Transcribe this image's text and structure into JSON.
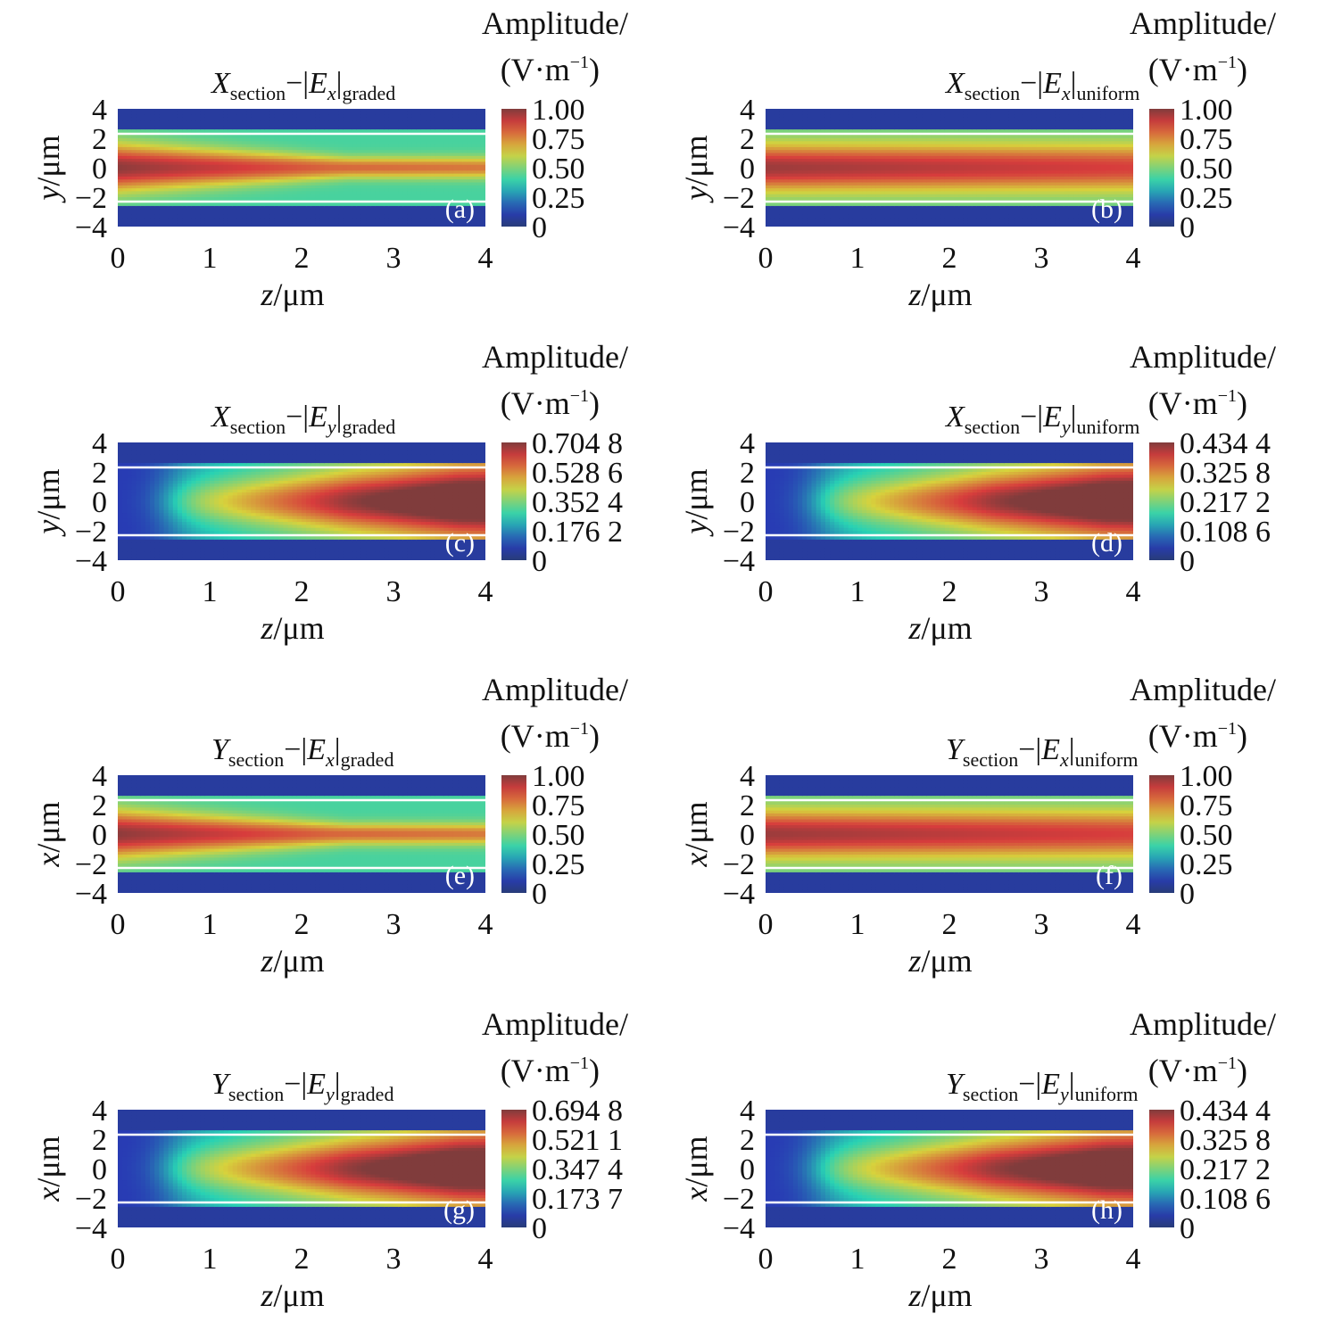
{
  "figure": {
    "colors": {
      "low": "#2a4ea8",
      "mid": "#5fbf3d",
      "high": "#d3251c",
      "guide_line": "#ffffff"
    },
    "colormap_name": "jet"
  },
  "chart_data": [
    {
      "type": "heatmap",
      "panel": "(a)",
      "title": {
        "var": "X",
        "sub1": "section",
        "field": "E",
        "fsub": "x",
        "sub2": "graded"
      },
      "xlabel": {
        "var": "z",
        "unit": "/μm"
      },
      "ylabel": {
        "var": "y",
        "unit": "/μm"
      },
      "xticks": [
        "0",
        "1",
        "2",
        "3",
        "4"
      ],
      "yticks": [
        "4",
        "2",
        "0",
        "−2",
        "−4"
      ],
      "xlim": [
        0,
        4
      ],
      "ylim": [
        -4,
        4
      ],
      "core_bounds": [
        -2.3,
        2.3
      ],
      "colorbar": {
        "label": [
          "Amplitude/",
          "(V·m",
          "−1",
          ")"
        ],
        "ticks": [
          "1.00",
          "0.75",
          "0.50",
          "0.25",
          "0"
        ],
        "max": 1.0
      },
      "profile": "decay"
    },
    {
      "type": "heatmap",
      "panel": "(b)",
      "title": {
        "var": "X",
        "sub1": "section",
        "field": "E",
        "fsub": "x",
        "sub2": "uniform"
      },
      "xlabel": {
        "var": "z",
        "unit": "/μm"
      },
      "ylabel": {
        "var": "y",
        "unit": "/μm"
      },
      "xticks": [
        "0",
        "1",
        "2",
        "3",
        "4"
      ],
      "yticks": [
        "4",
        "2",
        "0",
        "−2",
        "−4"
      ],
      "xlim": [
        0,
        4
      ],
      "ylim": [
        -4,
        4
      ],
      "core_bounds": [
        -2.3,
        2.3
      ],
      "colorbar": {
        "label": [
          "Amplitude/",
          "(V·m",
          "−1",
          ")"
        ],
        "ticks": [
          "1.00",
          "0.75",
          "0.50",
          "0.25",
          "0"
        ],
        "max": 1.0
      },
      "profile": "steady"
    },
    {
      "type": "heatmap",
      "panel": "(c)",
      "title": {
        "var": "X",
        "sub1": "section",
        "field": "E",
        "fsub": "y",
        "sub2": "graded"
      },
      "xlabel": {
        "var": "z",
        "unit": "/μm"
      },
      "ylabel": {
        "var": "y",
        "unit": "/μm"
      },
      "xticks": [
        "0",
        "1",
        "2",
        "3",
        "4"
      ],
      "yticks": [
        "4",
        "2",
        "0",
        "−2",
        "−4"
      ],
      "xlim": [
        0,
        4
      ],
      "ylim": [
        -4,
        4
      ],
      "core_bounds": [
        -2.3,
        2.3
      ],
      "colorbar": {
        "label": [
          "Amplitude/",
          "(V·m",
          "−1",
          ")"
        ],
        "ticks": [
          "0.704 8",
          "0.528 6",
          "0.352 4",
          "0.176 2",
          "0"
        ],
        "max": 0.7048
      },
      "profile": "grow"
    },
    {
      "type": "heatmap",
      "panel": "(d)",
      "title": {
        "var": "X",
        "sub1": "section",
        "field": "E",
        "fsub": "y",
        "sub2": "uniform"
      },
      "xlabel": {
        "var": "z",
        "unit": "/μm"
      },
      "ylabel": {
        "var": "y",
        "unit": "/μm"
      },
      "xticks": [
        "0",
        "1",
        "2",
        "3",
        "4"
      ],
      "yticks": [
        "4",
        "2",
        "0",
        "−2",
        "−4"
      ],
      "xlim": [
        0,
        4
      ],
      "ylim": [
        -4,
        4
      ],
      "core_bounds": [
        -2.3,
        2.3
      ],
      "colorbar": {
        "label": [
          "Amplitude/",
          "(V·m",
          "−1",
          ")"
        ],
        "ticks": [
          "0.434 4",
          "0.325 8",
          "0.217 2",
          "0.108 6",
          "0"
        ],
        "max": 0.4344
      },
      "profile": "grow"
    },
    {
      "type": "heatmap",
      "panel": "(e)",
      "title": {
        "var": "Y",
        "sub1": "section",
        "field": "E",
        "fsub": "x",
        "sub2": "graded"
      },
      "xlabel": {
        "var": "z",
        "unit": "/μm"
      },
      "ylabel": {
        "var": "x",
        "unit": "/μm"
      },
      "xticks": [
        "0",
        "1",
        "2",
        "3",
        "4"
      ],
      "yticks": [
        "4",
        "2",
        "0",
        "−2",
        "−4"
      ],
      "xlim": [
        0,
        4
      ],
      "ylim": [
        -4,
        4
      ],
      "core_bounds": [
        -2.3,
        2.3
      ],
      "colorbar": {
        "label": [
          "Amplitude/",
          "(V·m",
          "−1",
          ")"
        ],
        "ticks": [
          "1.00",
          "0.75",
          "0.50",
          "0.25",
          "0"
        ],
        "max": 1.0
      },
      "profile": "decay"
    },
    {
      "type": "heatmap",
      "panel": "(f)",
      "title": {
        "var": "Y",
        "sub1": "section",
        "field": "E",
        "fsub": "x",
        "sub2": "uniform"
      },
      "xlabel": {
        "var": "z",
        "unit": "/μm"
      },
      "ylabel": {
        "var": "x",
        "unit": "/μm"
      },
      "xticks": [
        "0",
        "1",
        "2",
        "3",
        "4"
      ],
      "yticks": [
        "4",
        "2",
        "0",
        "−2",
        "−4"
      ],
      "xlim": [
        0,
        4
      ],
      "ylim": [
        -4,
        4
      ],
      "core_bounds": [
        -2.3,
        2.3
      ],
      "colorbar": {
        "label": [
          "Amplitude/",
          "(V·m",
          "−1",
          ")"
        ],
        "ticks": [
          "1.00",
          "0.75",
          "0.50",
          "0.25",
          "0"
        ],
        "max": 1.0
      },
      "profile": "steady"
    },
    {
      "type": "heatmap",
      "panel": "(g)",
      "title": {
        "var": "Y",
        "sub1": "section",
        "field": "E",
        "fsub": "y",
        "sub2": "graded"
      },
      "xlabel": {
        "var": "z",
        "unit": "/μm"
      },
      "ylabel": {
        "var": "x",
        "unit": "/μm"
      },
      "xticks": [
        "0",
        "1",
        "2",
        "3",
        "4"
      ],
      "yticks": [
        "4",
        "2",
        "0",
        "−2",
        "−4"
      ],
      "xlim": [
        0,
        4
      ],
      "ylim": [
        -4,
        4
      ],
      "core_bounds": [
        -2.3,
        2.3
      ],
      "colorbar": {
        "label": [
          "Amplitude/",
          "(V·m",
          "−1",
          ")"
        ],
        "ticks": [
          "0.694 8",
          "0.521 1",
          "0.347 4",
          "0.173 7",
          "0"
        ],
        "max": 0.6948
      },
      "profile": "grow"
    },
    {
      "type": "heatmap",
      "panel": "(h)",
      "title": {
        "var": "Y",
        "sub1": "section",
        "field": "E",
        "fsub": "y",
        "sub2": "uniform"
      },
      "xlabel": {
        "var": "z",
        "unit": "/μm"
      },
      "ylabel": {
        "var": "x",
        "unit": "/μm"
      },
      "xticks": [
        "0",
        "1",
        "2",
        "3",
        "4"
      ],
      "yticks": [
        "4",
        "2",
        "0",
        "−2",
        "−4"
      ],
      "xlim": [
        0,
        4
      ],
      "ylim": [
        -4,
        4
      ],
      "core_bounds": [
        -2.3,
        2.3
      ],
      "colorbar": {
        "label": [
          "Amplitude/",
          "(V·m",
          "−1",
          ")"
        ],
        "ticks": [
          "0.434 4",
          "0.325 8",
          "0.217 2",
          "0.108 6",
          "0"
        ],
        "max": 0.4344
      },
      "profile": "grow"
    }
  ]
}
